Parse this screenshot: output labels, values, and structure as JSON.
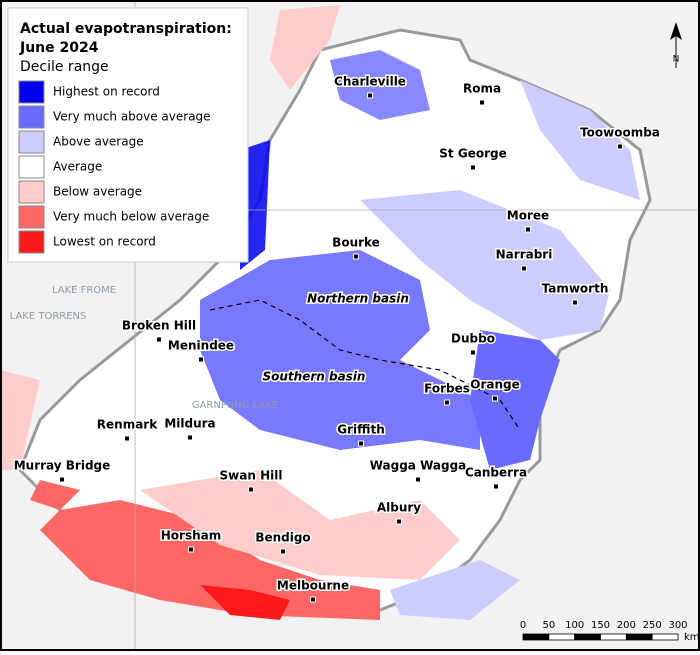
{
  "legend": {
    "title_line1": "Actual evapotranspiration:",
    "title_line2": "June 2024",
    "subtitle": "Decile range",
    "items": [
      {
        "label": "Highest on record",
        "color": "#0000ee"
      },
      {
        "label": "Very much above average",
        "color": "#6a6aff"
      },
      {
        "label": "Above average",
        "color": "#ccccff"
      },
      {
        "label": "Average",
        "color": "#ffffff"
      },
      {
        "label": "Below average",
        "color": "#ffcccc"
      },
      {
        "label": "Very much below average",
        "color": "#ff6666"
      },
      {
        "label": "Lowest on record",
        "color": "#ff1a1a"
      }
    ]
  },
  "places": [
    "Charleville",
    "Roma",
    "Toowoomba",
    "St George",
    "Moree",
    "Bourke",
    "Narrabri",
    "Tamworth",
    "Broken Hill",
    "Menindee",
    "Dubbo",
    "Forbes",
    "Orange",
    "Renmark",
    "Mildura",
    "Griffith",
    "Wagga Wagga",
    "Canberra",
    "Murray Bridge",
    "Swan Hill",
    "Albury",
    "Horsham",
    "Bendigo",
    "Melbourne"
  ],
  "basins": [
    "Northern basin",
    "Southern basin"
  ],
  "lakes": [
    "LAKE FROME",
    "LAKE TORRENS",
    "GARNPUNG LAKE"
  ],
  "north_arrow": "N",
  "scale_bar": {
    "ticks": [
      0,
      50,
      100,
      150,
      200,
      250,
      300
    ],
    "unit": "km"
  }
}
